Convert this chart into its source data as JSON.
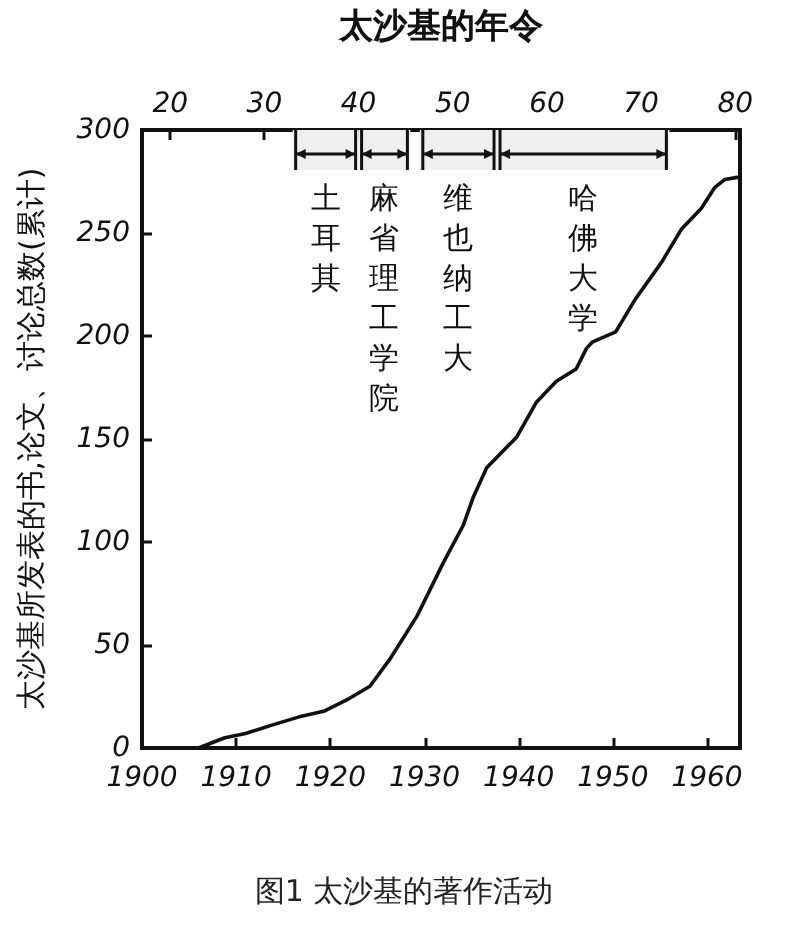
{
  "chart_data": {
    "type": "line",
    "title": "图1 太沙基的著作活动",
    "x2label": "太沙基的年令",
    "ylabel": "太沙基所发表的书,论文、讨论总数(累计)",
    "x": [
      1906,
      1908.8,
      1911,
      1913.7,
      1916.6,
      1919.4,
      1922,
      1924.2,
      1926.3,
      1929.2,
      1932,
      1934.1,
      1935.2,
      1936.6,
      1939.8,
      1941.9,
      1944,
      1946.1,
      1947.2,
      1947.8,
      1950.3,
      1952.4,
      1955.2,
      1957.3,
      1959.4,
      1960.8,
      1961.9,
      1963.2
    ],
    "values": [
      0,
      5,
      7,
      11,
      15,
      18,
      24,
      30,
      43,
      64,
      90,
      108,
      122,
      136,
      151,
      168,
      178,
      184,
      194,
      197,
      202,
      218,
      236,
      252,
      262,
      272,
      276,
      277
    ],
    "color": "#111111",
    "marker": "none",
    "xlim": [
      1900,
      1963.5
    ],
    "xticks": [
      1900,
      1910,
      1920,
      1930,
      1940,
      1950,
      1960
    ],
    "x2lim": [
      17,
      80.5
    ],
    "x2ticks": [
      20,
      30,
      40,
      50,
      60,
      70,
      80
    ],
    "ylim": [
      0,
      300
    ],
    "yticks": [
      0,
      50,
      100,
      150,
      200,
      250,
      300
    ],
    "bands": [
      {
        "axis": "x",
        "from": 1916,
        "to": 1923,
        "label": "土耳其"
      },
      {
        "axis": "x",
        "from": 1923,
        "to": 1928.5,
        "label": "麻省理工学院"
      },
      {
        "axis": "x",
        "from": 1929.5,
        "to": 1937.7,
        "label": "维也纳工大"
      },
      {
        "axis": "x",
        "from": 1937.7,
        "to": 1956,
        "label": "哈佛大学"
      }
    ]
  }
}
